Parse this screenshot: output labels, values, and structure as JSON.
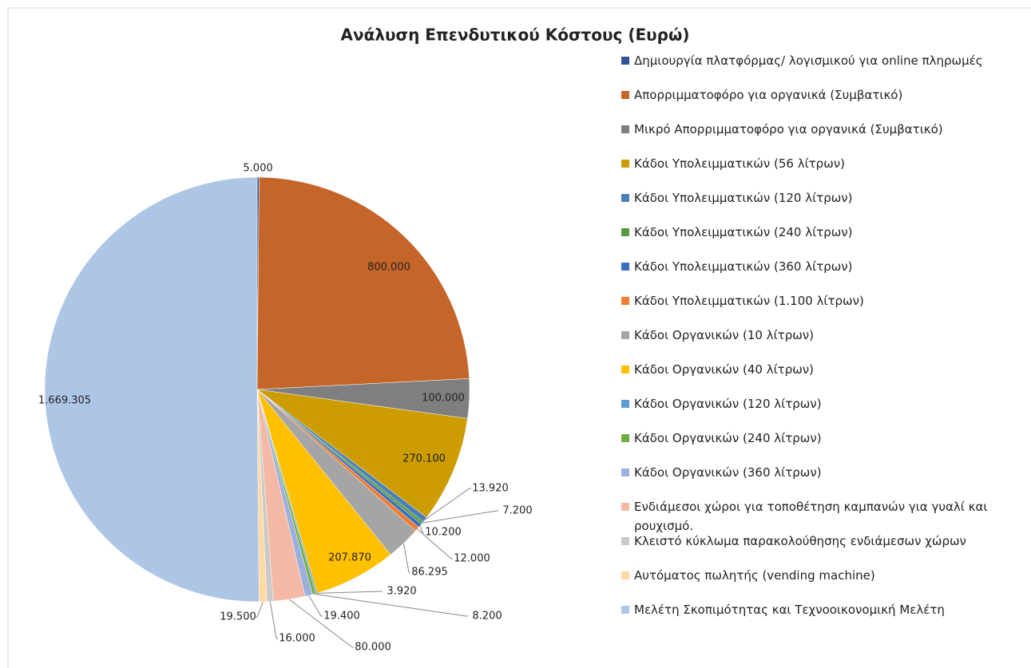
{
  "chart_data": {
    "type": "pie",
    "title": "Ανάλυση Επενδυτικού Κόστους (Ευρώ)",
    "categories": [
      "Δημιουργία πλατφόρμας/ λογισμικού για online πληρωμές",
      "Απορριμματοφόρο για οργανικά (Συμβατικό)",
      "Μικρό Απορριμματοφόρο για οργανικά (Συμβατικό)",
      "Κάδοι Υπολειμματικών (56 λίτρων)",
      "Κάδοι Υπολειμματικών (120 λίτρων)",
      "Κάδοι Υπολειμματικών (240 λίτρων)",
      "Κάδοι Υπολειμματικών (360 λίτρων)",
      "Κάδοι Υπολειμματικών (1.100 λίτρων)",
      "Κάδοι Οργανικών (10 λίτρων)",
      "Κάδοι Οργανικών (40 λίτρων)",
      "Κάδοι Οργανικών (120 λίτρων)",
      "Κάδοι Οργανικών (240 λίτρων)",
      "Κάδοι Οργανικών (360 λίτρων)",
      "Ενδιάμεσοι χώροι για τοποθέτηση καμπανών για γυαλί και ρουχισμό.",
      "Κλειστό κύκλωμα παρακολούθησης ενδιάμεσων χώρων",
      "Αυτόματος πωλητής (vending machine)",
      "Μελέτη Σκοπιμότητας και Τεχνοοικονομική Μελέτη"
    ],
    "values": [
      5000,
      800000,
      100000,
      270100,
      13920,
      7200,
      10200,
      12000,
      86295,
      207870,
      3920,
      8200,
      19400,
      80000,
      16000,
      19500,
      1669305
    ],
    "value_labels": [
      "5.000",
      "800.000",
      "100.000",
      "270.100",
      "13.920",
      "7.200",
      "10.200",
      "12.000",
      "86.295",
      "207.870",
      "3.920",
      "8.200",
      "19.400",
      "80.000",
      "16.000",
      "19.500",
      "1.669.305"
    ],
    "colors": [
      "#2f5597",
      "#c5652a",
      "#7f7f7f",
      "#cc9c00",
      "#4a7fb8",
      "#5a9a3c",
      "#3d6fc0",
      "#ed7d31",
      "#a5a5a5",
      "#ffc000",
      "#5b9bd5",
      "#70ad47",
      "#9dafdd",
      "#f4b9a4",
      "#c9c9c9",
      "#ffd9a3",
      "#aec6e6"
    ],
    "legend": "right"
  }
}
